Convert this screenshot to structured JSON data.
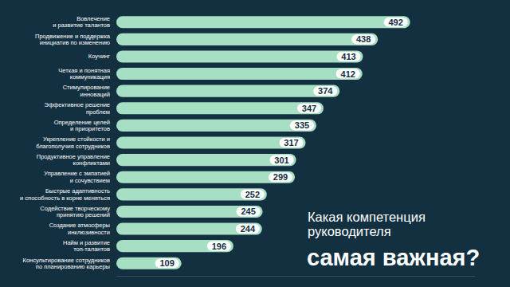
{
  "chart_data": {
    "type": "bar",
    "orientation": "horizontal",
    "title": "Какая компетенция\nруководителя",
    "subtitle": "самая важная?",
    "categories": [
      "Вовлечение\nи развитие талантов",
      "Продвижение и поддержка\nинициатив по изменению",
      "Коучинг",
      "Четкая и понятная\nкоммуникация",
      "Стимулирование\nинноваций",
      "Эффективное решение\nпроблем",
      "Определение целей\nи приоритетов",
      "Укрепление стойкости и\nблагополучия сотрудников",
      "Продуктивное управление\nконфликтами",
      "Управление с эмпатией\nи сочувствием",
      "Быстрые адаптивность\nи способность в корне меняться",
      "Содействие творческому\nпринятию решений",
      "Создание атмосферы\nинклюзивности",
      "Найм и развитие\nтоп-талантов",
      "Консультирование сотрудников\nпо планированию карьеры"
    ],
    "values": [
      492,
      438,
      413,
      412,
      374,
      347,
      335,
      317,
      301,
      299,
      252,
      245,
      244,
      196,
      109
    ],
    "color": "#a6dfc3",
    "xlim": [
      0,
      600
    ],
    "xticks": [],
    "data_labels": true,
    "tick_labels": false,
    "grid": false
  }
}
